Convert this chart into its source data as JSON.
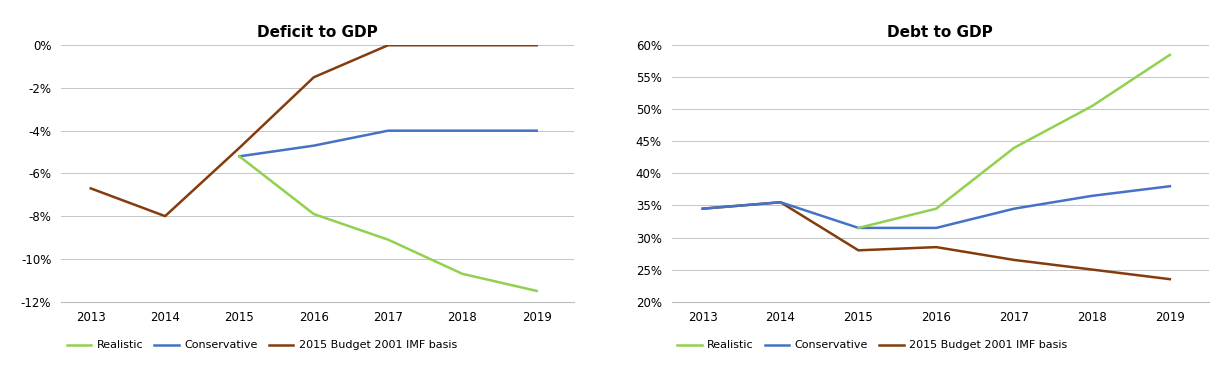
{
  "years": [
    2013,
    2014,
    2015,
    2016,
    2017,
    2018,
    2019
  ],
  "deficit": {
    "title": "Deficit to GDP",
    "realistic": [
      null,
      null,
      -5.2,
      -7.9,
      -9.1,
      -10.7,
      -11.5
    ],
    "conservative": [
      null,
      null,
      -5.2,
      -4.7,
      -4.0,
      -4.0,
      -4.0
    ],
    "imf_budget": [
      -6.7,
      -8.0,
      -4.8,
      -1.5,
      0.0,
      0.0,
      0.0
    ],
    "ylim_min": -12,
    "ylim_max": 0,
    "yticks": [
      0,
      -2,
      -4,
      -6,
      -8,
      -10,
      -12
    ],
    "ytick_labels": [
      "0%",
      "-2%",
      "-4%",
      "-6%",
      "-8%",
      "-10%",
      "-12%"
    ]
  },
  "debt": {
    "title": "Debt to GDP",
    "realistic": [
      null,
      null,
      31.5,
      34.5,
      44.0,
      50.5,
      58.5
    ],
    "conservative": [
      34.5,
      35.5,
      31.5,
      31.5,
      34.5,
      36.5,
      38.0
    ],
    "imf_budget": [
      34.5,
      35.5,
      28.0,
      28.5,
      26.5,
      25.0,
      23.5
    ],
    "ylim_min": 20,
    "ylim_max": 60,
    "yticks": [
      20,
      25,
      30,
      35,
      40,
      45,
      50,
      55,
      60
    ],
    "ytick_labels": [
      "20%",
      "25%",
      "30%",
      "35%",
      "40%",
      "45%",
      "50%",
      "55%",
      "60%"
    ]
  },
  "color_realistic": "#92d050",
  "color_conservative": "#4472c4",
  "color_imf": "#843c0c",
  "legend_labels": [
    "Realistic",
    "Conservative",
    "2015 Budget 2001 IMF basis"
  ],
  "line_width": 1.8,
  "fig_width": 12.21,
  "fig_height": 3.77,
  "dpi": 100
}
